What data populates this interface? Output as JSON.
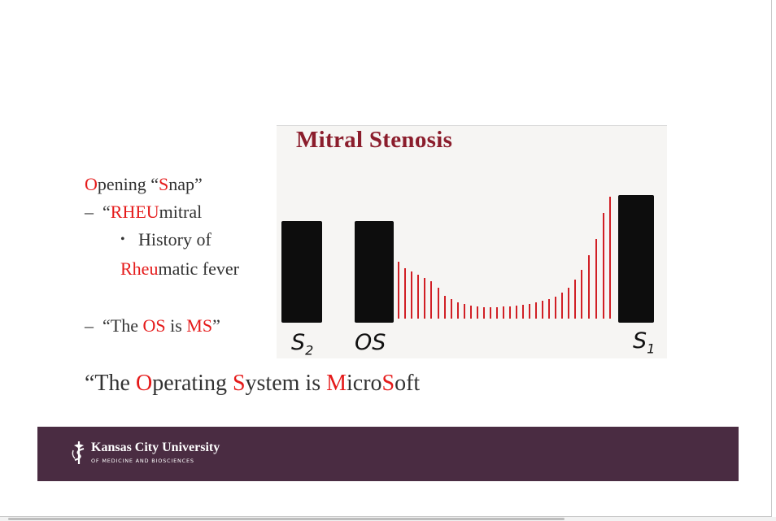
{
  "slide": {
    "bullets": {
      "opening_snap": [
        {
          "text": "O",
          "red": true
        },
        {
          "text": "pening “",
          "red": false
        },
        {
          "text": "S",
          "red": true
        },
        {
          "text": "nap”",
          "red": false
        }
      ],
      "rheumitral_dash": "–",
      "rheumitral": [
        {
          "text": "“",
          "red": false
        },
        {
          "text": "RHEU",
          "red": true
        },
        {
          "text": "mitral",
          "red": false
        }
      ],
      "history_bullet": "•",
      "history_line1": "History of",
      "history_line2": [
        {
          "text": "Rheu",
          "red": true
        },
        {
          "text": "matic fever",
          "red": false
        }
      ],
      "os_ms_dash": "–",
      "os_ms": [
        {
          "text": "“The ",
          "red": false
        },
        {
          "text": "OS",
          "red": true
        },
        {
          "text": " is ",
          "red": false
        },
        {
          "text": "MS",
          "red": true
        },
        {
          "text": "”",
          "red": false
        }
      ]
    },
    "tagline": [
      {
        "text": "“The ",
        "red": false
      },
      {
        "text": "O",
        "red": true
      },
      {
        "text": "perating ",
        "red": false
      },
      {
        "text": "S",
        "red": true
      },
      {
        "text": "ystem is ",
        "red": false
      },
      {
        "text": "M",
        "red": true
      },
      {
        "text": "icro",
        "red": false
      },
      {
        "text": "S",
        "red": true
      },
      {
        "text": "oft",
        "red": false
      }
    ],
    "figure": {
      "title": "Mitral Stenosis",
      "label_s2": "S",
      "label_s2_sub": "2",
      "label_os": "OS",
      "label_s1": "S",
      "label_s1_sub": "1"
    },
    "footer": {
      "university": "Kansas City University",
      "subtitle": "OF MEDICINE AND BIOSCIENCES"
    }
  },
  "colors": {
    "accent_red": "#e51a1a",
    "figure_title": "#8b1d2c",
    "footer_bg": "#4a2c42",
    "murmur_line": "#d11f25"
  }
}
